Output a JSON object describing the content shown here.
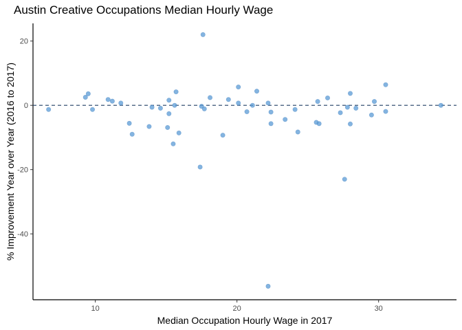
{
  "chart_data": {
    "type": "scatter",
    "title": "Austin Creative Occupations Median Hourly Wage",
    "xlabel": "Median Occupation Hourly Wage in 2017",
    "ylabel": "% Improvement Year over Year (2016 to 2017)",
    "xlim": [
      5.6,
      35.5
    ],
    "ylim": [
      -60.5,
      25.5
    ],
    "x_ticks": [
      10,
      20,
      30
    ],
    "y_ticks": [
      20,
      0,
      -20,
      -40
    ],
    "x_tick_labels": [
      "10",
      "20",
      "30"
    ],
    "y_tick_labels": [
      "20",
      "0",
      "-20",
      "-40"
    ],
    "reference_line": {
      "y": 0,
      "style": "dashed",
      "color": "#1f3d63"
    },
    "grid": false,
    "point_color": "#5b9bd5",
    "points": [
      {
        "x": 6.7,
        "y": -1.3
      },
      {
        "x": 9.3,
        "y": 2.5
      },
      {
        "x": 9.5,
        "y": 3.6
      },
      {
        "x": 9.8,
        "y": -1.3
      },
      {
        "x": 10.9,
        "y": 1.8
      },
      {
        "x": 11.2,
        "y": 1.3
      },
      {
        "x": 11.8,
        "y": 0.7
      },
      {
        "x": 12.4,
        "y": -5.6
      },
      {
        "x": 12.6,
        "y": -9.0
      },
      {
        "x": 13.8,
        "y": -6.6
      },
      {
        "x": 14.0,
        "y": -0.6
      },
      {
        "x": 14.6,
        "y": -0.9
      },
      {
        "x": 15.1,
        "y": -6.9
      },
      {
        "x": 15.2,
        "y": 1.6
      },
      {
        "x": 15.2,
        "y": -2.6
      },
      {
        "x": 15.5,
        "y": -12.0
      },
      {
        "x": 15.6,
        "y": 0.0
      },
      {
        "x": 15.7,
        "y": 4.2
      },
      {
        "x": 15.9,
        "y": -8.6
      },
      {
        "x": 17.4,
        "y": -19.2
      },
      {
        "x": 17.5,
        "y": -0.3
      },
      {
        "x": 17.6,
        "y": 22.0
      },
      {
        "x": 17.7,
        "y": -1.1
      },
      {
        "x": 18.1,
        "y": 2.4
      },
      {
        "x": 19.0,
        "y": -9.3
      },
      {
        "x": 19.4,
        "y": 1.8
      },
      {
        "x": 20.1,
        "y": 5.7
      },
      {
        "x": 20.1,
        "y": 0.7
      },
      {
        "x": 20.7,
        "y": -2.0
      },
      {
        "x": 21.1,
        "y": 0.0
      },
      {
        "x": 21.4,
        "y": 4.4
      },
      {
        "x": 22.2,
        "y": 0.7
      },
      {
        "x": 22.2,
        "y": -56.3
      },
      {
        "x": 22.4,
        "y": -2.1
      },
      {
        "x": 22.4,
        "y": -5.7
      },
      {
        "x": 23.4,
        "y": -4.4
      },
      {
        "x": 24.1,
        "y": -1.3
      },
      {
        "x": 24.3,
        "y": -8.3
      },
      {
        "x": 25.6,
        "y": -5.3
      },
      {
        "x": 25.7,
        "y": 1.2
      },
      {
        "x": 25.8,
        "y": -5.7
      },
      {
        "x": 26.4,
        "y": 2.3
      },
      {
        "x": 27.3,
        "y": -2.3
      },
      {
        "x": 27.6,
        "y": -23.0
      },
      {
        "x": 27.8,
        "y": -0.6
      },
      {
        "x": 28.0,
        "y": -5.8
      },
      {
        "x": 28.0,
        "y": 3.7
      },
      {
        "x": 28.4,
        "y": -0.9
      },
      {
        "x": 29.5,
        "y": -3.0
      },
      {
        "x": 29.7,
        "y": 1.2
      },
      {
        "x": 30.5,
        "y": 6.4
      },
      {
        "x": 30.5,
        "y": -1.9
      },
      {
        "x": 34.4,
        "y": 0.0
      }
    ]
  }
}
